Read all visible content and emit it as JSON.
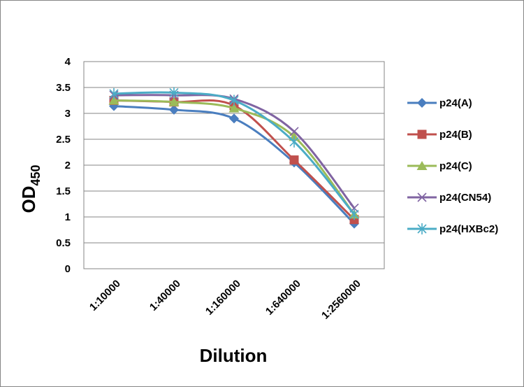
{
  "chart_data": {
    "type": "line",
    "categories": [
      "1:10000",
      "1:40000",
      "1:160000",
      "1:640000",
      "1:2560000"
    ],
    "ylabel_main": "OD",
    "ylabel_sub": "450",
    "xlabel": "Dilution",
    "ylim": [
      0,
      4
    ],
    "yticks": [
      "0",
      "0.5",
      "1",
      "1.5",
      "2",
      "2.5",
      "3",
      "3.5",
      "4"
    ],
    "grid": true,
    "legend_position": "right",
    "series": [
      {
        "name": "p24(A)",
        "color": "#4a7ebf",
        "marker": "diamond",
        "values": [
          3.14,
          3.07,
          2.9,
          2.05,
          0.87
        ]
      },
      {
        "name": "p24(B)",
        "color": "#c0504d",
        "marker": "square",
        "values": [
          3.25,
          3.22,
          3.15,
          2.1,
          0.95
        ]
      },
      {
        "name": "p24(C)",
        "color": "#9bbb59",
        "marker": "triangle",
        "values": [
          3.25,
          3.22,
          3.1,
          2.55,
          1.05
        ]
      },
      {
        "name": "p24(CN54)",
        "color": "#8064a2",
        "marker": "x",
        "values": [
          3.35,
          3.35,
          3.28,
          2.65,
          1.17
        ]
      },
      {
        "name": "p24(HXBc2)",
        "color": "#4bacc6",
        "marker": "star",
        "values": [
          3.38,
          3.4,
          3.25,
          2.45,
          1.05
        ]
      }
    ]
  }
}
